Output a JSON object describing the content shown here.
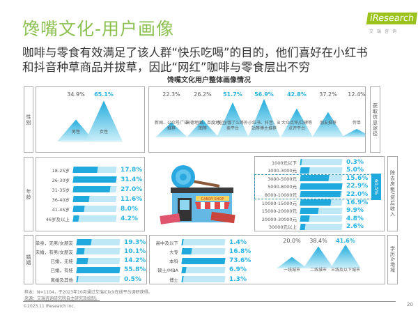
{
  "header": {
    "title": "馋嘴文化-用户画像",
    "subtitle_line1": "咖啡与零食有效满足了该人群“快乐吃喝”的目的，他们喜好在小红书",
    "subtitle_line2": "和抖音种草商品并拔草，因此“网红”咖啡与零食层出不穷",
    "logo": "iResearch",
    "logo_sub": "艾瑞咨询"
  },
  "chart_title": "馋嘴文化用户整体画像情况",
  "accent": "#26b0dd",
  "title_color": "#8cc152",
  "gender": {
    "label": "性别",
    "items": [
      {
        "label": "男性",
        "value": "34.9%",
        "v": 34.9,
        "hi": false
      },
      {
        "label": "女性",
        "value": "65.1%",
        "v": 65.1,
        "hi": true
      }
    ]
  },
  "info": {
    "label": "获取信息途径",
    "items": [
      {
        "label": "新闻、公众号广告推荐",
        "value": "22.3%",
        "v": 22.3,
        "hi": false
      },
      {
        "label": "高德地图、百度地图等",
        "value": "26.2%",
        "v": 26.2,
        "hi": false
      },
      {
        "label": "美团/饿了么等外卖平台",
        "value": "51.7%",
        "v": 51.7,
        "hi": true
      },
      {
        "label": "小红书、抖音、B站等博主推荐",
        "value": "56.9%",
        "v": 56.9,
        "hi": true
      },
      {
        "label": "大众点评/口碑等点评平台",
        "value": "42.8%",
        "v": 42.8,
        "hi": true
      },
      {
        "label": "朋友推荐",
        "value": "37.2%",
        "v": 37.2,
        "hi": false
      },
      {
        "label": "传单",
        "value": "12.4%",
        "v": 12.4,
        "hi": false
      }
    ]
  },
  "age": {
    "label": "年龄",
    "items": [
      {
        "label": "18-25岁",
        "value": "17.8%",
        "v": 17.8
      },
      {
        "label": "26-30岁",
        "value": "31.4%",
        "v": 31.4
      },
      {
        "label": "31-35岁",
        "value": "27.0%",
        "v": 27.0
      },
      {
        "label": "36-40岁",
        "value": "11.6%",
        "v": 11.6
      },
      {
        "label": "41-45岁",
        "value": "8.0%",
        "v": 8.0
      },
      {
        "label": "46岁及以上",
        "value": "4.2%",
        "v": 4.2
      }
    ]
  },
  "income": {
    "label": "除去房租/贷后收入",
    "bracket": "60.5%",
    "items": [
      {
        "label": "1000元以下",
        "value": "0.3%",
        "v": 0.3
      },
      {
        "label": "1000-3000元",
        "value": "5.0%",
        "v": 5.0
      },
      {
        "label": "3000-5000元",
        "value": "15.6%",
        "v": 15.6
      },
      {
        "label": "5000-8000元",
        "value": "22.9%",
        "v": 22.9
      },
      {
        "label": "8000-10000元",
        "value": "22.0%",
        "v": 22.0
      },
      {
        "label": "10000-15000元",
        "value": "16.9%",
        "v": 16.9
      },
      {
        "label": "15000-20000元",
        "value": "9.9%",
        "v": 9.9
      },
      {
        "label": "20000-30000元",
        "value": "4.8%",
        "v": 4.8
      },
      {
        "label": "30000元以上",
        "value": "2.6%",
        "v": 2.6
      }
    ]
  },
  "marital": {
    "label": "婚姻",
    "items": [
      {
        "label": "单身，无男/女朋友",
        "value": "19.3%",
        "v": 19.3
      },
      {
        "label": "未婚，有男/女朋友",
        "value": "10.1%",
        "v": 10.1
      },
      {
        "label": "已婚，无娃",
        "value": "14.2%",
        "v": 14.2
      },
      {
        "label": "已婚，有娃",
        "value": "55.8%",
        "v": 55.8
      },
      {
        "label": "离婚及其他",
        "value": "0.5%",
        "v": 0.5
      }
    ]
  },
  "education": {
    "label": "学历&地域",
    "items": [
      {
        "label": "高中及以下",
        "value": "1.4%",
        "v": 1.4
      },
      {
        "label": "大专",
        "value": "16.8%",
        "v": 16.8
      },
      {
        "label": "本科",
        "value": "73.6%",
        "v": 73.6
      },
      {
        "label": "硕士/MBA",
        "value": "6.9%",
        "v": 6.9
      },
      {
        "label": "博士",
        "value": "1.3%",
        "v": 1.3
      }
    ]
  },
  "city": {
    "items": [
      {
        "label": "一线城市",
        "value": "20.0%",
        "v": 20.0,
        "hi": false
      },
      {
        "label": "二线城市",
        "value": "38.4%",
        "v": 38.4,
        "hi": false
      },
      {
        "label": "三线及以下城市",
        "value": "41.6%",
        "v": 41.6,
        "hi": true
      }
    ]
  },
  "store_sign": "CANDY SHOP",
  "footer": {
    "sample": "样本：N=1104，于2023年10月通过艾瑞iClick在线平台调研获得。",
    "source": "来源：艾瑞咨询研究院自主研究及绘制。",
    "copyright": "©2023.11 iResearch Inc.",
    "page": "20"
  }
}
